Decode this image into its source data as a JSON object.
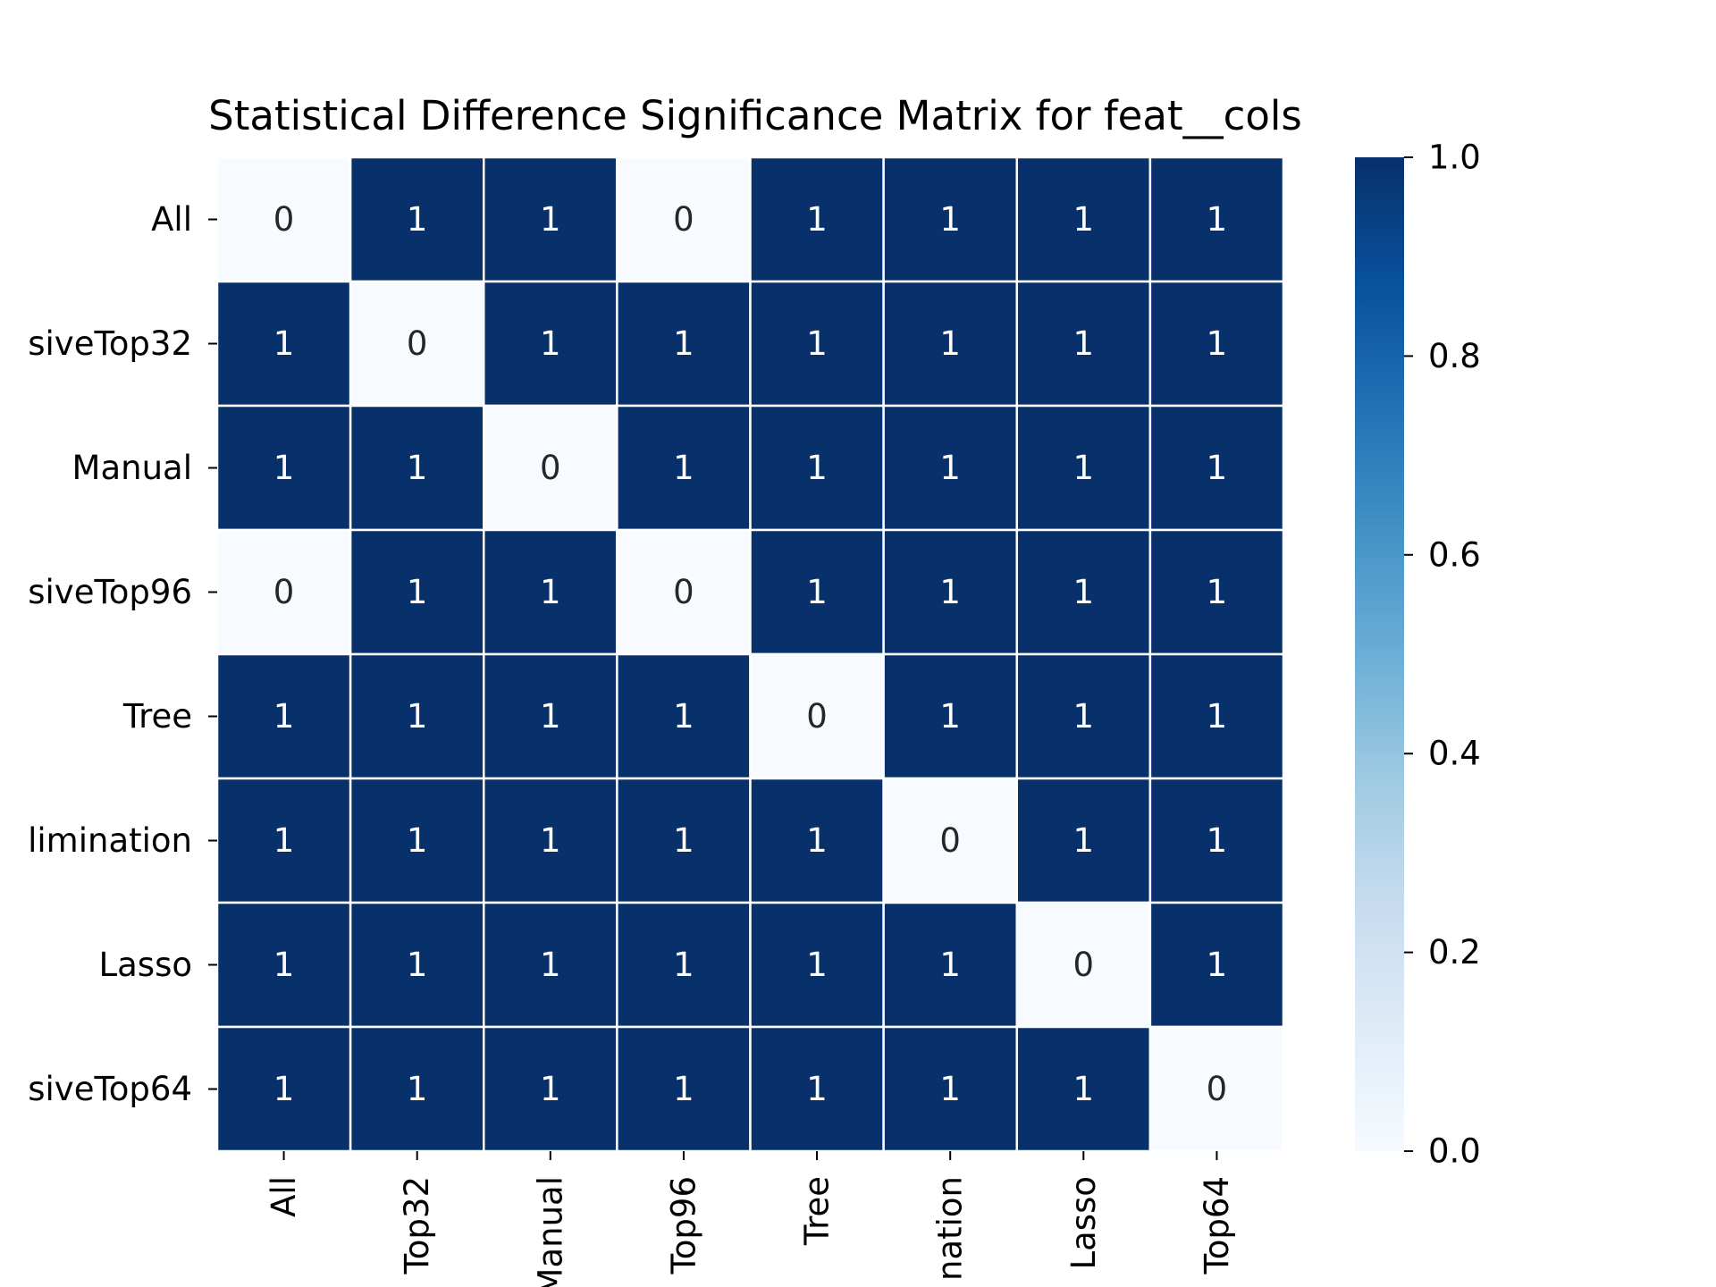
{
  "chart_data": {
    "type": "heatmap",
    "title": "Statistical Difference Significance Matrix for feat__cols",
    "xlabel": "",
    "ylabel": "",
    "row_tick_labels": [
      "All",
      "siveTop32",
      "Manual",
      "siveTop96",
      "Tree",
      "limination",
      "Lasso",
      "siveTop64"
    ],
    "col_tick_labels": [
      "All",
      "Top32",
      "Manual",
      "Top96",
      "Tree",
      "nation",
      "Lasso",
      "Top64"
    ],
    "values": [
      [
        0,
        1,
        1,
        0,
        1,
        1,
        1,
        1
      ],
      [
        1,
        0,
        1,
        1,
        1,
        1,
        1,
        1
      ],
      [
        1,
        1,
        0,
        1,
        1,
        1,
        1,
        1
      ],
      [
        0,
        1,
        1,
        0,
        1,
        1,
        1,
        1
      ],
      [
        1,
        1,
        1,
        1,
        0,
        1,
        1,
        1
      ],
      [
        1,
        1,
        1,
        1,
        1,
        0,
        1,
        1
      ],
      [
        1,
        1,
        1,
        1,
        1,
        1,
        0,
        1
      ],
      [
        1,
        1,
        1,
        1,
        1,
        1,
        1,
        0
      ]
    ],
    "colorbar": {
      "range": [
        0.0,
        1.0
      ],
      "ticks": [
        "0.0",
        "0.2",
        "0.4",
        "0.6",
        "0.8",
        "1.0"
      ],
      "colormap": "Blues",
      "low_color": "#f7fbff",
      "high_color": "#08306b"
    },
    "cell_separator_color": "#ffffff",
    "low_text_color": "#262626",
    "high_text_color": "#ffffff"
  }
}
